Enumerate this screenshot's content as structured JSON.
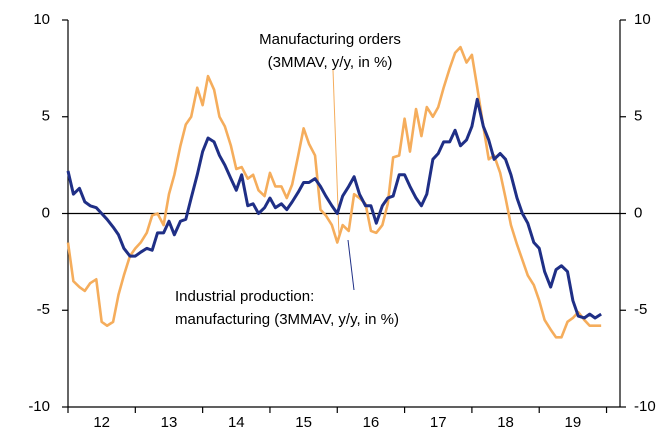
{
  "chart_data": {
    "type": "line",
    "x": [
      2012.0,
      2012.08,
      2012.17,
      2012.25,
      2012.33,
      2012.42,
      2012.5,
      2012.58,
      2012.67,
      2012.75,
      2012.83,
      2012.92,
      2013.0,
      2013.08,
      2013.17,
      2013.25,
      2013.33,
      2013.42,
      2013.5,
      2013.58,
      2013.67,
      2013.75,
      2013.83,
      2013.92,
      2014.0,
      2014.08,
      2014.17,
      2014.25,
      2014.33,
      2014.42,
      2014.5,
      2014.58,
      2014.67,
      2014.75,
      2014.83,
      2014.92,
      2015.0,
      2015.08,
      2015.17,
      2015.25,
      2015.33,
      2015.42,
      2015.5,
      2015.58,
      2015.67,
      2015.75,
      2015.83,
      2015.92,
      2016.0,
      2016.08,
      2016.17,
      2016.25,
      2016.33,
      2016.42,
      2016.5,
      2016.58,
      2016.67,
      2016.75,
      2016.83,
      2016.92,
      2017.0,
      2017.08,
      2017.17,
      2017.25,
      2017.33,
      2017.42,
      2017.5,
      2017.58,
      2017.67,
      2017.75,
      2017.83,
      2017.92,
      2018.0,
      2018.08,
      2018.17,
      2018.25,
      2018.33,
      2018.42,
      2018.5,
      2018.58,
      2018.67,
      2018.75,
      2018.83,
      2018.92,
      2019.0,
      2019.08,
      2019.17,
      2019.25,
      2019.33,
      2019.42,
      2019.5,
      2019.58,
      2019.67,
      2019.75,
      2019.83,
      2019.92
    ],
    "series": [
      {
        "name": "Manufacturing orders",
        "color": "#f5ad5c",
        "values": [
          -1.5,
          -3.5,
          -3.8,
          -4.0,
          -3.6,
          -3.4,
          -5.6,
          -5.8,
          -5.6,
          -4.2,
          -3.2,
          -2.2,
          -1.8,
          -1.5,
          -1.0,
          -0.1,
          0.0,
          -0.6,
          1.0,
          2.0,
          3.5,
          4.6,
          5.0,
          6.5,
          5.6,
          7.1,
          6.4,
          5.0,
          4.5,
          3.5,
          2.3,
          2.4,
          1.8,
          2.0,
          1.2,
          0.9,
          2.1,
          1.4,
          1.4,
          0.8,
          1.5,
          3.0,
          4.4,
          3.6,
          3.0,
          0.2,
          -0.1,
          -0.6,
          -1.5,
          -0.6,
          -0.9,
          1.0,
          0.8,
          0.5,
          -0.9,
          -1.0,
          -0.6,
          0.5,
          2.9,
          3.0,
          4.9,
          3.2,
          5.4,
          4.0,
          5.5,
          5.0,
          5.5,
          6.5,
          7.5,
          8.3,
          8.6,
          7.8,
          8.2,
          6.5,
          4.5,
          2.8,
          3.0,
          2.1,
          0.8,
          -0.6,
          -1.6,
          -2.4,
          -3.2,
          -3.7,
          -4.5,
          -5.5,
          -6.0,
          -6.4,
          -6.4,
          -5.6,
          -5.4,
          -5.1,
          -5.5,
          -5.8,
          -5.8,
          -5.8
        ]
      },
      {
        "name": "Industrial production",
        "color": "#1f2f86",
        "values": [
          2.2,
          1.0,
          1.3,
          0.6,
          0.4,
          0.3,
          0.0,
          -0.3,
          -0.7,
          -1.1,
          -1.8,
          -2.2,
          -2.2,
          -2.0,
          -1.8,
          -1.9,
          -1.0,
          -1.0,
          -0.4,
          -1.1,
          -0.4,
          -0.3,
          0.8,
          2.0,
          3.2,
          3.9,
          3.7,
          3.0,
          2.5,
          1.8,
          1.2,
          2.0,
          0.4,
          0.5,
          0.0,
          0.3,
          0.8,
          0.3,
          0.5,
          0.2,
          0.6,
          1.1,
          1.6,
          1.6,
          1.8,
          1.4,
          0.9,
          0.4,
          0.0,
          0.9,
          1.4,
          1.9,
          1.0,
          0.4,
          0.4,
          -0.5,
          0.4,
          0.8,
          0.9,
          2.0,
          2.0,
          1.4,
          0.8,
          0.4,
          1.0,
          2.8,
          3.1,
          3.7,
          3.7,
          4.3,
          3.5,
          3.8,
          4.5,
          5.9,
          4.5,
          3.8,
          2.8,
          3.1,
          2.8,
          2.0,
          0.8,
          0.0,
          -0.5,
          -1.5,
          -1.8,
          -3.0,
          -3.8,
          -2.9,
          -2.7,
          -3.0,
          -4.5,
          -5.3,
          -5.4,
          -5.2,
          -5.4,
          -5.2
        ]
      }
    ],
    "annotations": [
      [
        "Manufacturing orders",
        "(3MMAV, y/y, in %)"
      ],
      [
        "Industrial production:",
        "manufacturing (3MMAV, y/y, in %)"
      ]
    ],
    "xlim": [
      2012,
      2020.2
    ],
    "xticks": [
      {
        "value": 2012.5,
        "label": "12"
      },
      {
        "value": 2013.5,
        "label": "13"
      },
      {
        "value": 2014.5,
        "label": "14"
      },
      {
        "value": 2015.5,
        "label": "15"
      },
      {
        "value": 2016.5,
        "label": "16"
      },
      {
        "value": 2017.5,
        "label": "17"
      },
      {
        "value": 2018.5,
        "label": "18"
      },
      {
        "value": 2019.5,
        "label": "19"
      }
    ],
    "ylim": [
      -10,
      10
    ],
    "yticks": [
      -10,
      -5,
      0,
      5,
      10
    ],
    "y2lim": [
      -10,
      10
    ],
    "y2ticks": [
      -10,
      -5,
      0,
      5,
      10
    ]
  }
}
